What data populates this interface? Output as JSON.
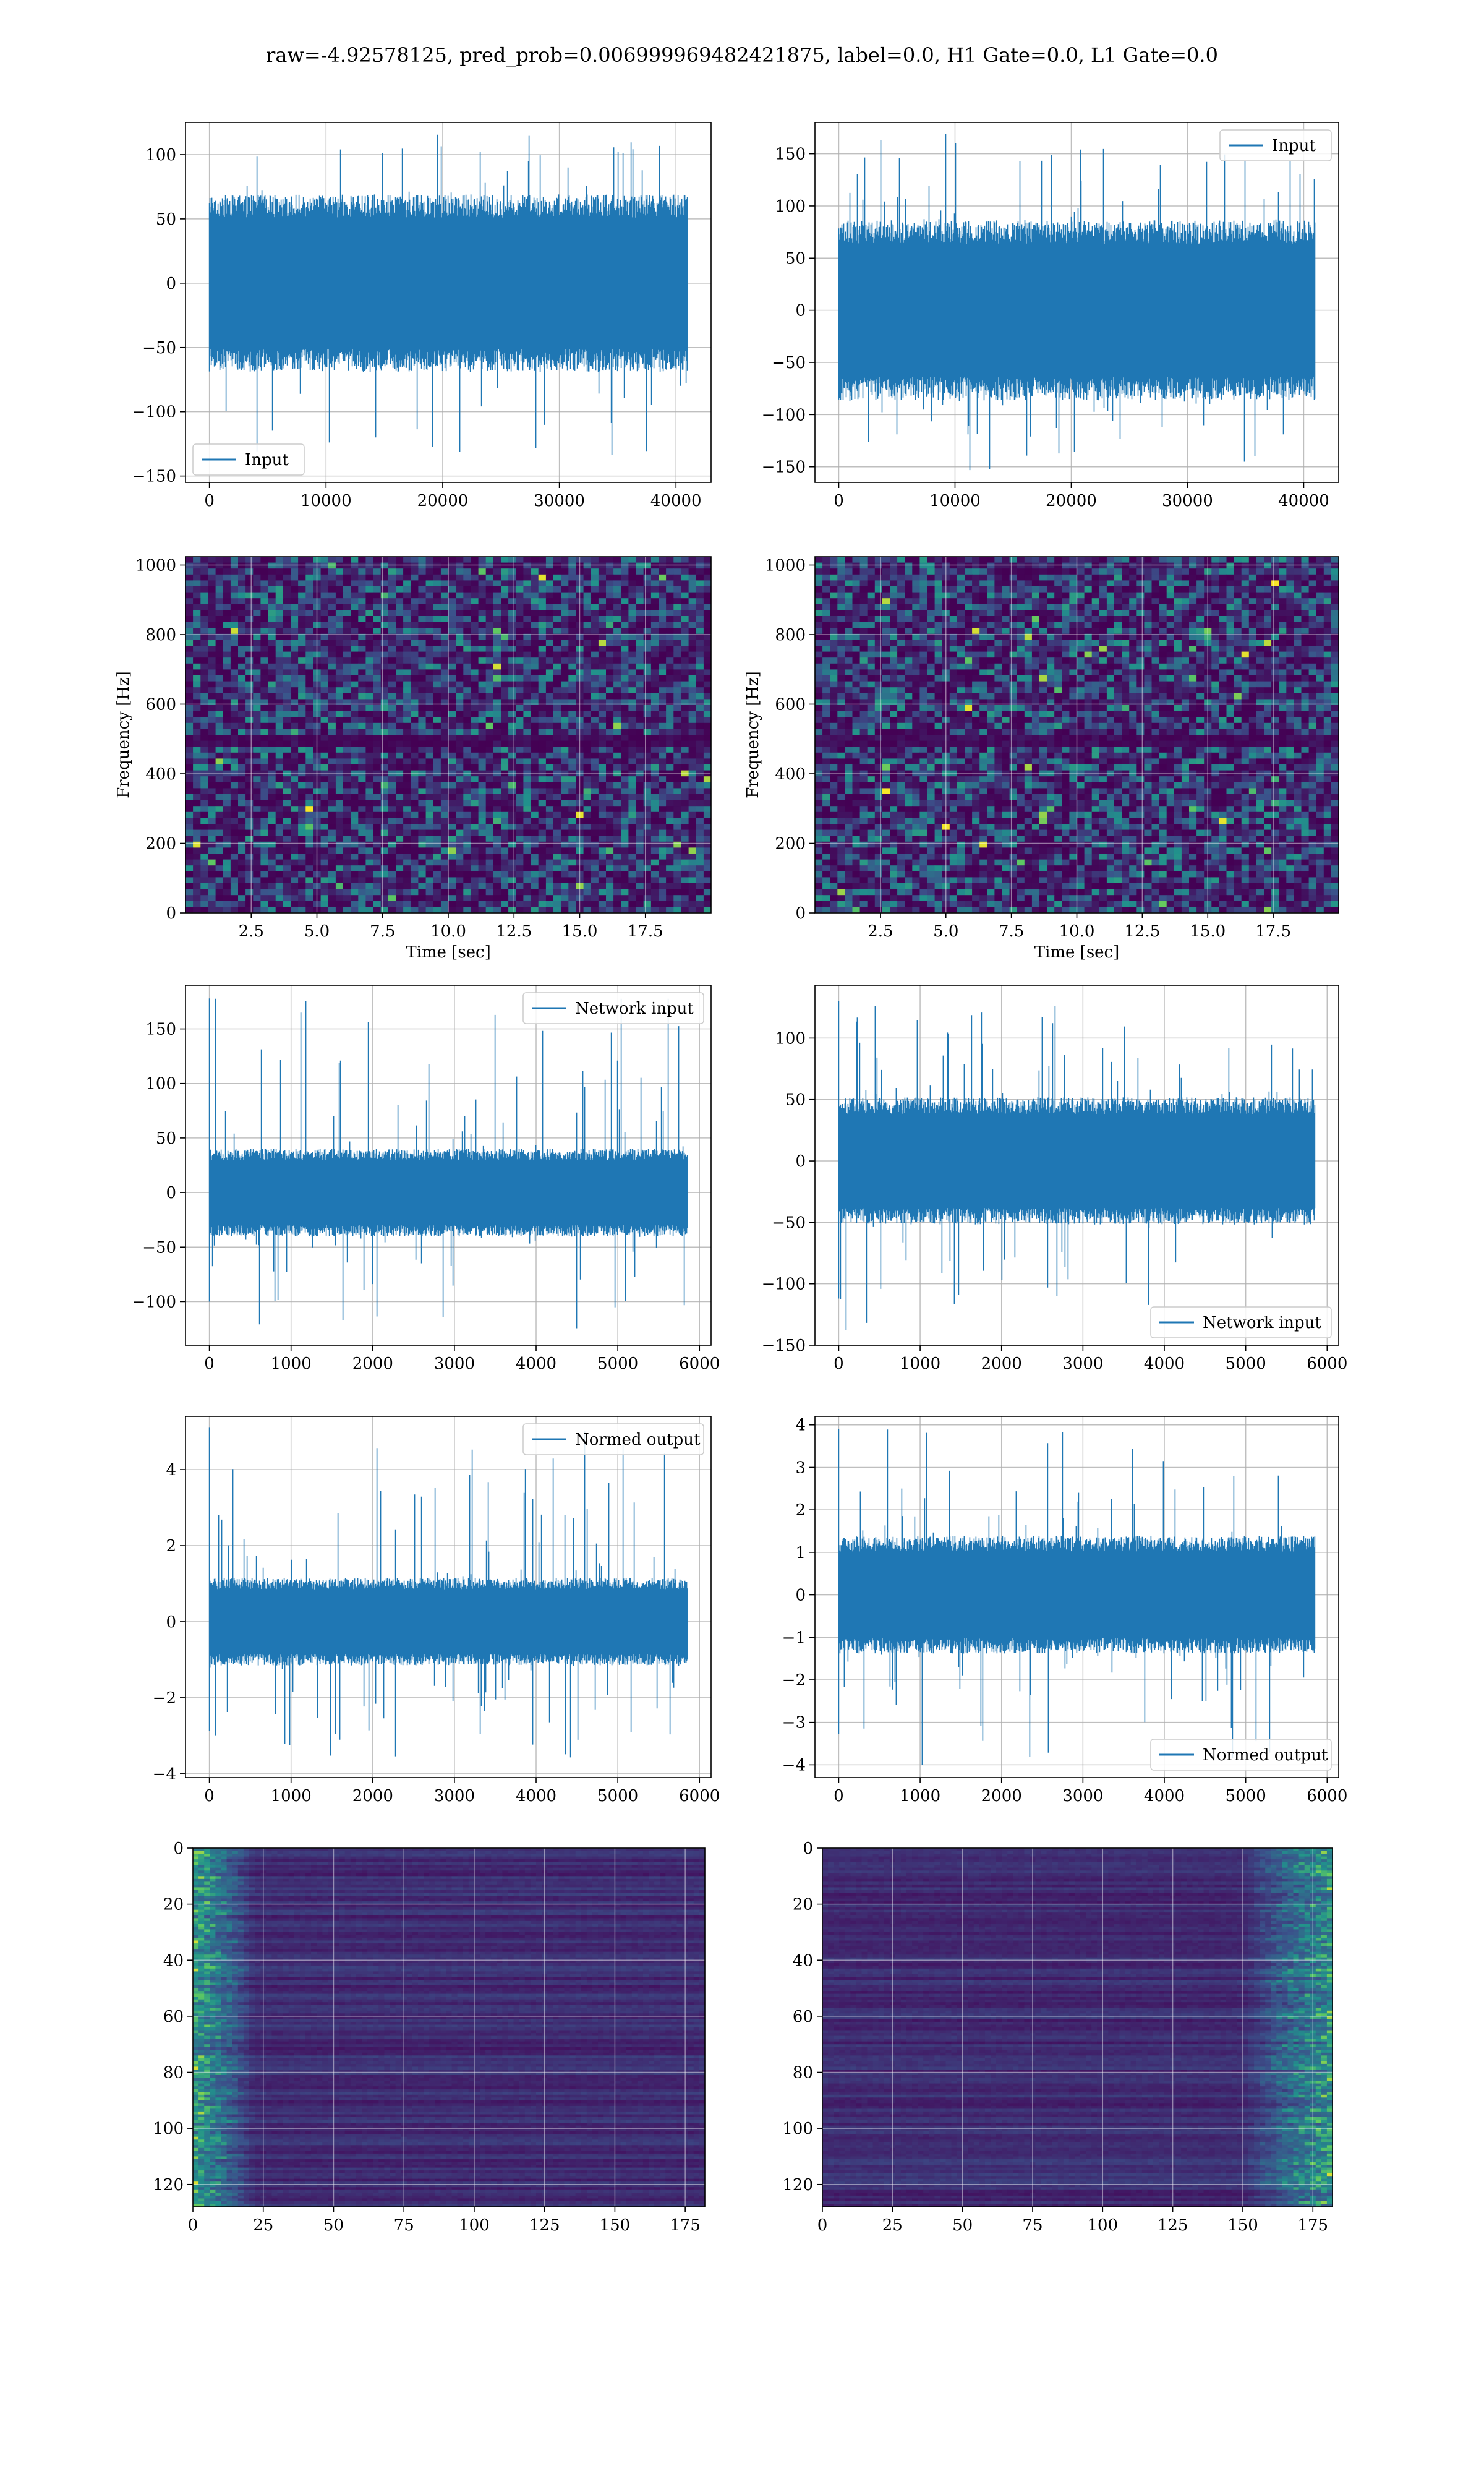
{
  "figure": {
    "title": "raw=-4.92578125, pred_prob=0.006999969482421875, label=0.0, H1 Gate=0.0, L1 Gate=0.0"
  },
  "colors": {
    "series": "#1f77b4",
    "grid": "#b0b0b0",
    "axes": "#000000",
    "heat_low": "#440154",
    "heat_high": "#fde725"
  },
  "chart_data": [
    {
      "id": "r1-left",
      "type": "line",
      "row": 1,
      "col": 1,
      "series": [
        {
          "name": "Input",
          "n": 40960,
          "amplitude_core": 60,
          "spike_max": 118,
          "spike_min": -140
        }
      ],
      "xlim": [
        -2048,
        43008
      ],
      "ylim": [
        -155,
        125
      ],
      "xticks": [
        0,
        10000,
        20000,
        30000,
        40000
      ],
      "yticks": [
        -150,
        -100,
        -50,
        0,
        50,
        100
      ],
      "legend": {
        "placement": "lower-left"
      },
      "xlabel": "",
      "ylabel": "",
      "grid": true
    },
    {
      "id": "r1-right",
      "type": "line",
      "row": 1,
      "col": 2,
      "series": [
        {
          "name": "Input",
          "n": 40960,
          "amplitude_core": 75,
          "spike_max": 170,
          "spike_min": -155
        }
      ],
      "xlim": [
        -2048,
        43008
      ],
      "ylim": [
        -165,
        180
      ],
      "xticks": [
        0,
        10000,
        20000,
        30000,
        40000
      ],
      "yticks": [
        -150,
        -100,
        -50,
        0,
        50,
        100,
        150
      ],
      "legend": {
        "placement": "upper-right"
      },
      "xlabel": "",
      "ylabel": "",
      "grid": true
    },
    {
      "id": "r2-left",
      "type": "heatmap",
      "row": 2,
      "col": 1,
      "xlim": [
        0,
        20
      ],
      "ylim": [
        0,
        1024
      ],
      "xticks": [
        2.5,
        5.0,
        7.5,
        10.0,
        12.5,
        15.0,
        17.5
      ],
      "xtick_labels": [
        "2.5",
        "5.0",
        "7.5",
        "10.0",
        "12.5",
        "15.0",
        "17.5"
      ],
      "yticks": [
        0,
        200,
        400,
        600,
        800,
        1000
      ],
      "xlabel": "Time [sec]",
      "ylabel": "Frequency [Hz]",
      "grid": true,
      "dark_band_hz": 500
    },
    {
      "id": "r2-right",
      "type": "heatmap",
      "row": 2,
      "col": 2,
      "xlim": [
        0,
        20
      ],
      "ylim": [
        0,
        1024
      ],
      "xticks": [
        2.5,
        5.0,
        7.5,
        10.0,
        12.5,
        15.0,
        17.5
      ],
      "xtick_labels": [
        "2.5",
        "5.0",
        "7.5",
        "10.0",
        "12.5",
        "15.0",
        "17.5"
      ],
      "yticks": [
        0,
        200,
        400,
        600,
        800,
        1000
      ],
      "xlabel": "Time [sec]",
      "ylabel": "Frequency [Hz]",
      "grid": true,
      "dark_band_hz": 500
    },
    {
      "id": "r3-left",
      "type": "line",
      "row": 3,
      "col": 1,
      "series": [
        {
          "name": "Network input",
          "n": 5850,
          "amplitude_core": 35,
          "spike_max": 178,
          "spike_min": -125
        }
      ],
      "xlim": [
        -292,
        6142
      ],
      "ylim": [
        -140,
        190
      ],
      "xticks": [
        0,
        1000,
        2000,
        3000,
        4000,
        5000,
        6000
      ],
      "yticks": [
        -100,
        -50,
        0,
        50,
        100,
        150
      ],
      "legend": {
        "placement": "upper-right"
      },
      "xlabel": "",
      "ylabel": "",
      "grid": true
    },
    {
      "id": "r3-right",
      "type": "line",
      "row": 3,
      "col": 2,
      "series": [
        {
          "name": "Network input",
          "n": 5850,
          "amplitude_core": 45,
          "spike_max": 130,
          "spike_min": -140
        }
      ],
      "xlim": [
        -292,
        6142
      ],
      "ylim": [
        -150,
        143
      ],
      "xticks": [
        0,
        1000,
        2000,
        3000,
        4000,
        5000,
        6000
      ],
      "yticks": [
        -150,
        -100,
        -50,
        0,
        50,
        100
      ],
      "legend": {
        "placement": "lower-right"
      },
      "xlabel": "",
      "ylabel": "",
      "grid": true
    },
    {
      "id": "r4-left",
      "type": "line",
      "row": 4,
      "col": 1,
      "series": [
        {
          "name": "Normed output",
          "n": 5850,
          "amplitude_core": 1.0,
          "spike_max": 5.1,
          "spike_min": -3.6
        }
      ],
      "xlim": [
        -292,
        6142
      ],
      "ylim": [
        -4.1,
        5.4
      ],
      "xticks": [
        0,
        1000,
        2000,
        3000,
        4000,
        5000,
        6000
      ],
      "yticks": [
        -4,
        -2,
        0,
        2,
        4
      ],
      "legend": {
        "placement": "upper-right"
      },
      "xlabel": "",
      "ylabel": "",
      "grid": true
    },
    {
      "id": "r4-right",
      "type": "line",
      "row": 4,
      "col": 2,
      "series": [
        {
          "name": "Normed output",
          "n": 5850,
          "amplitude_core": 1.2,
          "spike_max": 3.9,
          "spike_min": -4.1
        }
      ],
      "xlim": [
        -292,
        6142
      ],
      "ylim": [
        -4.3,
        4.2
      ],
      "xticks": [
        0,
        1000,
        2000,
        3000,
        4000,
        5000,
        6000
      ],
      "yticks": [
        -4,
        -3,
        -2,
        -1,
        0,
        1,
        2,
        3,
        4
      ],
      "legend": {
        "placement": "lower-right"
      },
      "xlabel": "",
      "ylabel": "",
      "grid": true
    },
    {
      "id": "r5-left",
      "type": "heatmap",
      "row": 5,
      "col": 1,
      "xlim": [
        0,
        182
      ],
      "ylim": [
        128,
        0
      ],
      "xticks": [
        0,
        25,
        50,
        75,
        100,
        125,
        150,
        175
      ],
      "yticks": [
        0,
        20,
        40,
        60,
        80,
        100,
        120
      ],
      "xlabel": "",
      "ylabel": "",
      "grid": true,
      "bright_region": "left"
    },
    {
      "id": "r5-right",
      "type": "heatmap",
      "row": 5,
      "col": 2,
      "xlim": [
        0,
        182
      ],
      "ylim": [
        128,
        0
      ],
      "xticks": [
        0,
        25,
        50,
        75,
        100,
        125,
        150,
        175
      ],
      "yticks": [
        0,
        20,
        40,
        60,
        80,
        100,
        120
      ],
      "xlabel": "",
      "ylabel": "",
      "grid": true,
      "bright_region": "right"
    }
  ]
}
